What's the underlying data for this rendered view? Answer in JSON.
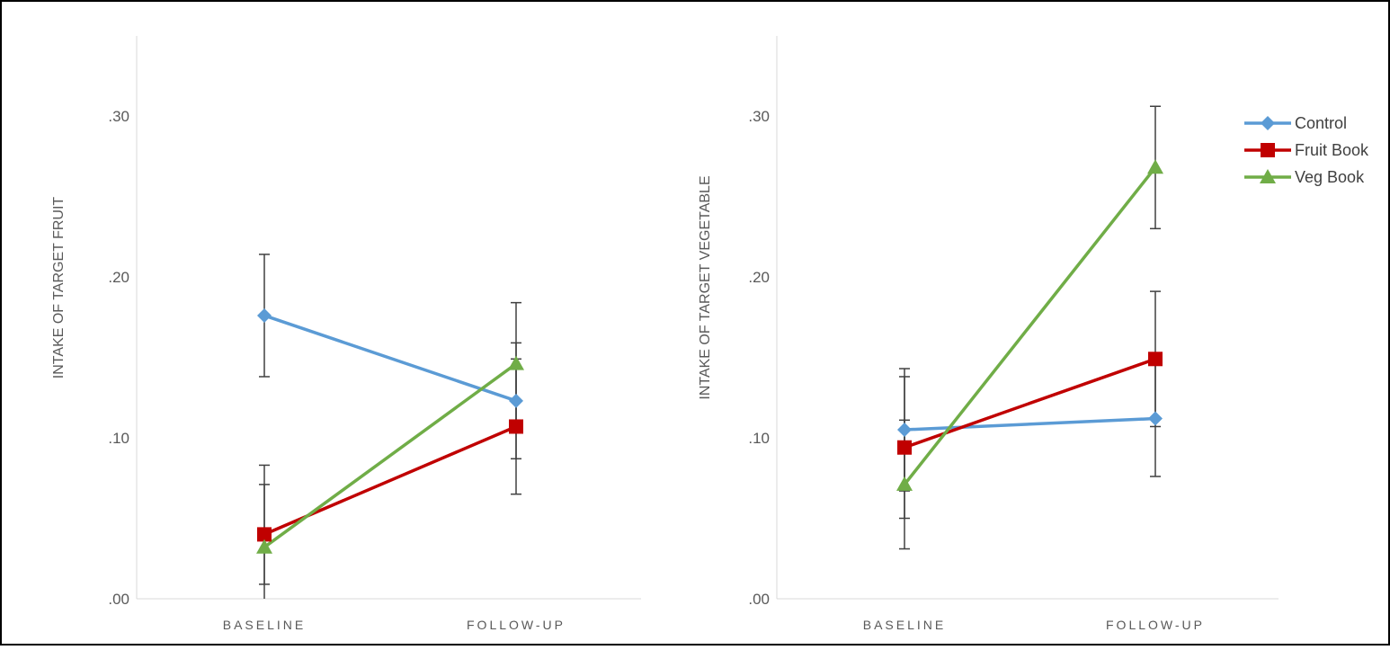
{
  "chart_data": [
    {
      "type": "line",
      "ylabel": "INTAKE OF TARGET FRUIT",
      "xlabel": "",
      "categories": [
        "BASELINE",
        "FOLLOW-UP"
      ],
      "yticks": [
        ".00",
        ".10",
        ".20",
        ".30"
      ],
      "ylim": [
        0,
        0.35
      ],
      "grid": false,
      "series": [
        {
          "name": "Control",
          "values": [
            0.176,
            0.123
          ],
          "error": [
            0.038,
            0.036
          ],
          "color": "#5b9bd5",
          "marker": "diamond"
        },
        {
          "name": "Fruit Book",
          "values": [
            0.04,
            0.107
          ],
          "error": [
            0.031,
            0.042
          ],
          "color": "#c00000",
          "marker": "square"
        },
        {
          "name": "Veg Book",
          "values": [
            0.032,
            0.146
          ],
          "error": [
            0.051,
            0.038
          ],
          "color": "#70ad47",
          "marker": "triangle"
        }
      ]
    },
    {
      "type": "line",
      "ylabel": "INTAKE OF TARGET VEGETABLE",
      "xlabel": "",
      "categories": [
        "BASELINE",
        "FOLLOW-UP"
      ],
      "yticks": [
        ".00",
        ".10",
        ".20",
        ".30"
      ],
      "ylim": [
        0,
        0.35
      ],
      "grid": false,
      "series": [
        {
          "name": "Control",
          "values": [
            0.105,
            0.112
          ],
          "error": [
            0.038,
            0.036
          ],
          "color": "#5b9bd5",
          "marker": "diamond"
        },
        {
          "name": "Fruit Book",
          "values": [
            0.094,
            0.149
          ],
          "error": [
            0.044,
            0.042
          ],
          "color": "#c00000",
          "marker": "square"
        },
        {
          "name": "Veg Book",
          "values": [
            0.071,
            0.268
          ],
          "error": [
            0.04,
            0.038
          ],
          "color": "#70ad47",
          "marker": "triangle"
        }
      ]
    }
  ],
  "legend": {
    "placement": "top-right",
    "items": [
      {
        "label": "Control",
        "color": "#5b9bd5",
        "marker": "diamond"
      },
      {
        "label": "Fruit Book",
        "color": "#c00000",
        "marker": "square"
      },
      {
        "label": "Veg Book",
        "color": "#70ad47",
        "marker": "triangle"
      }
    ]
  }
}
